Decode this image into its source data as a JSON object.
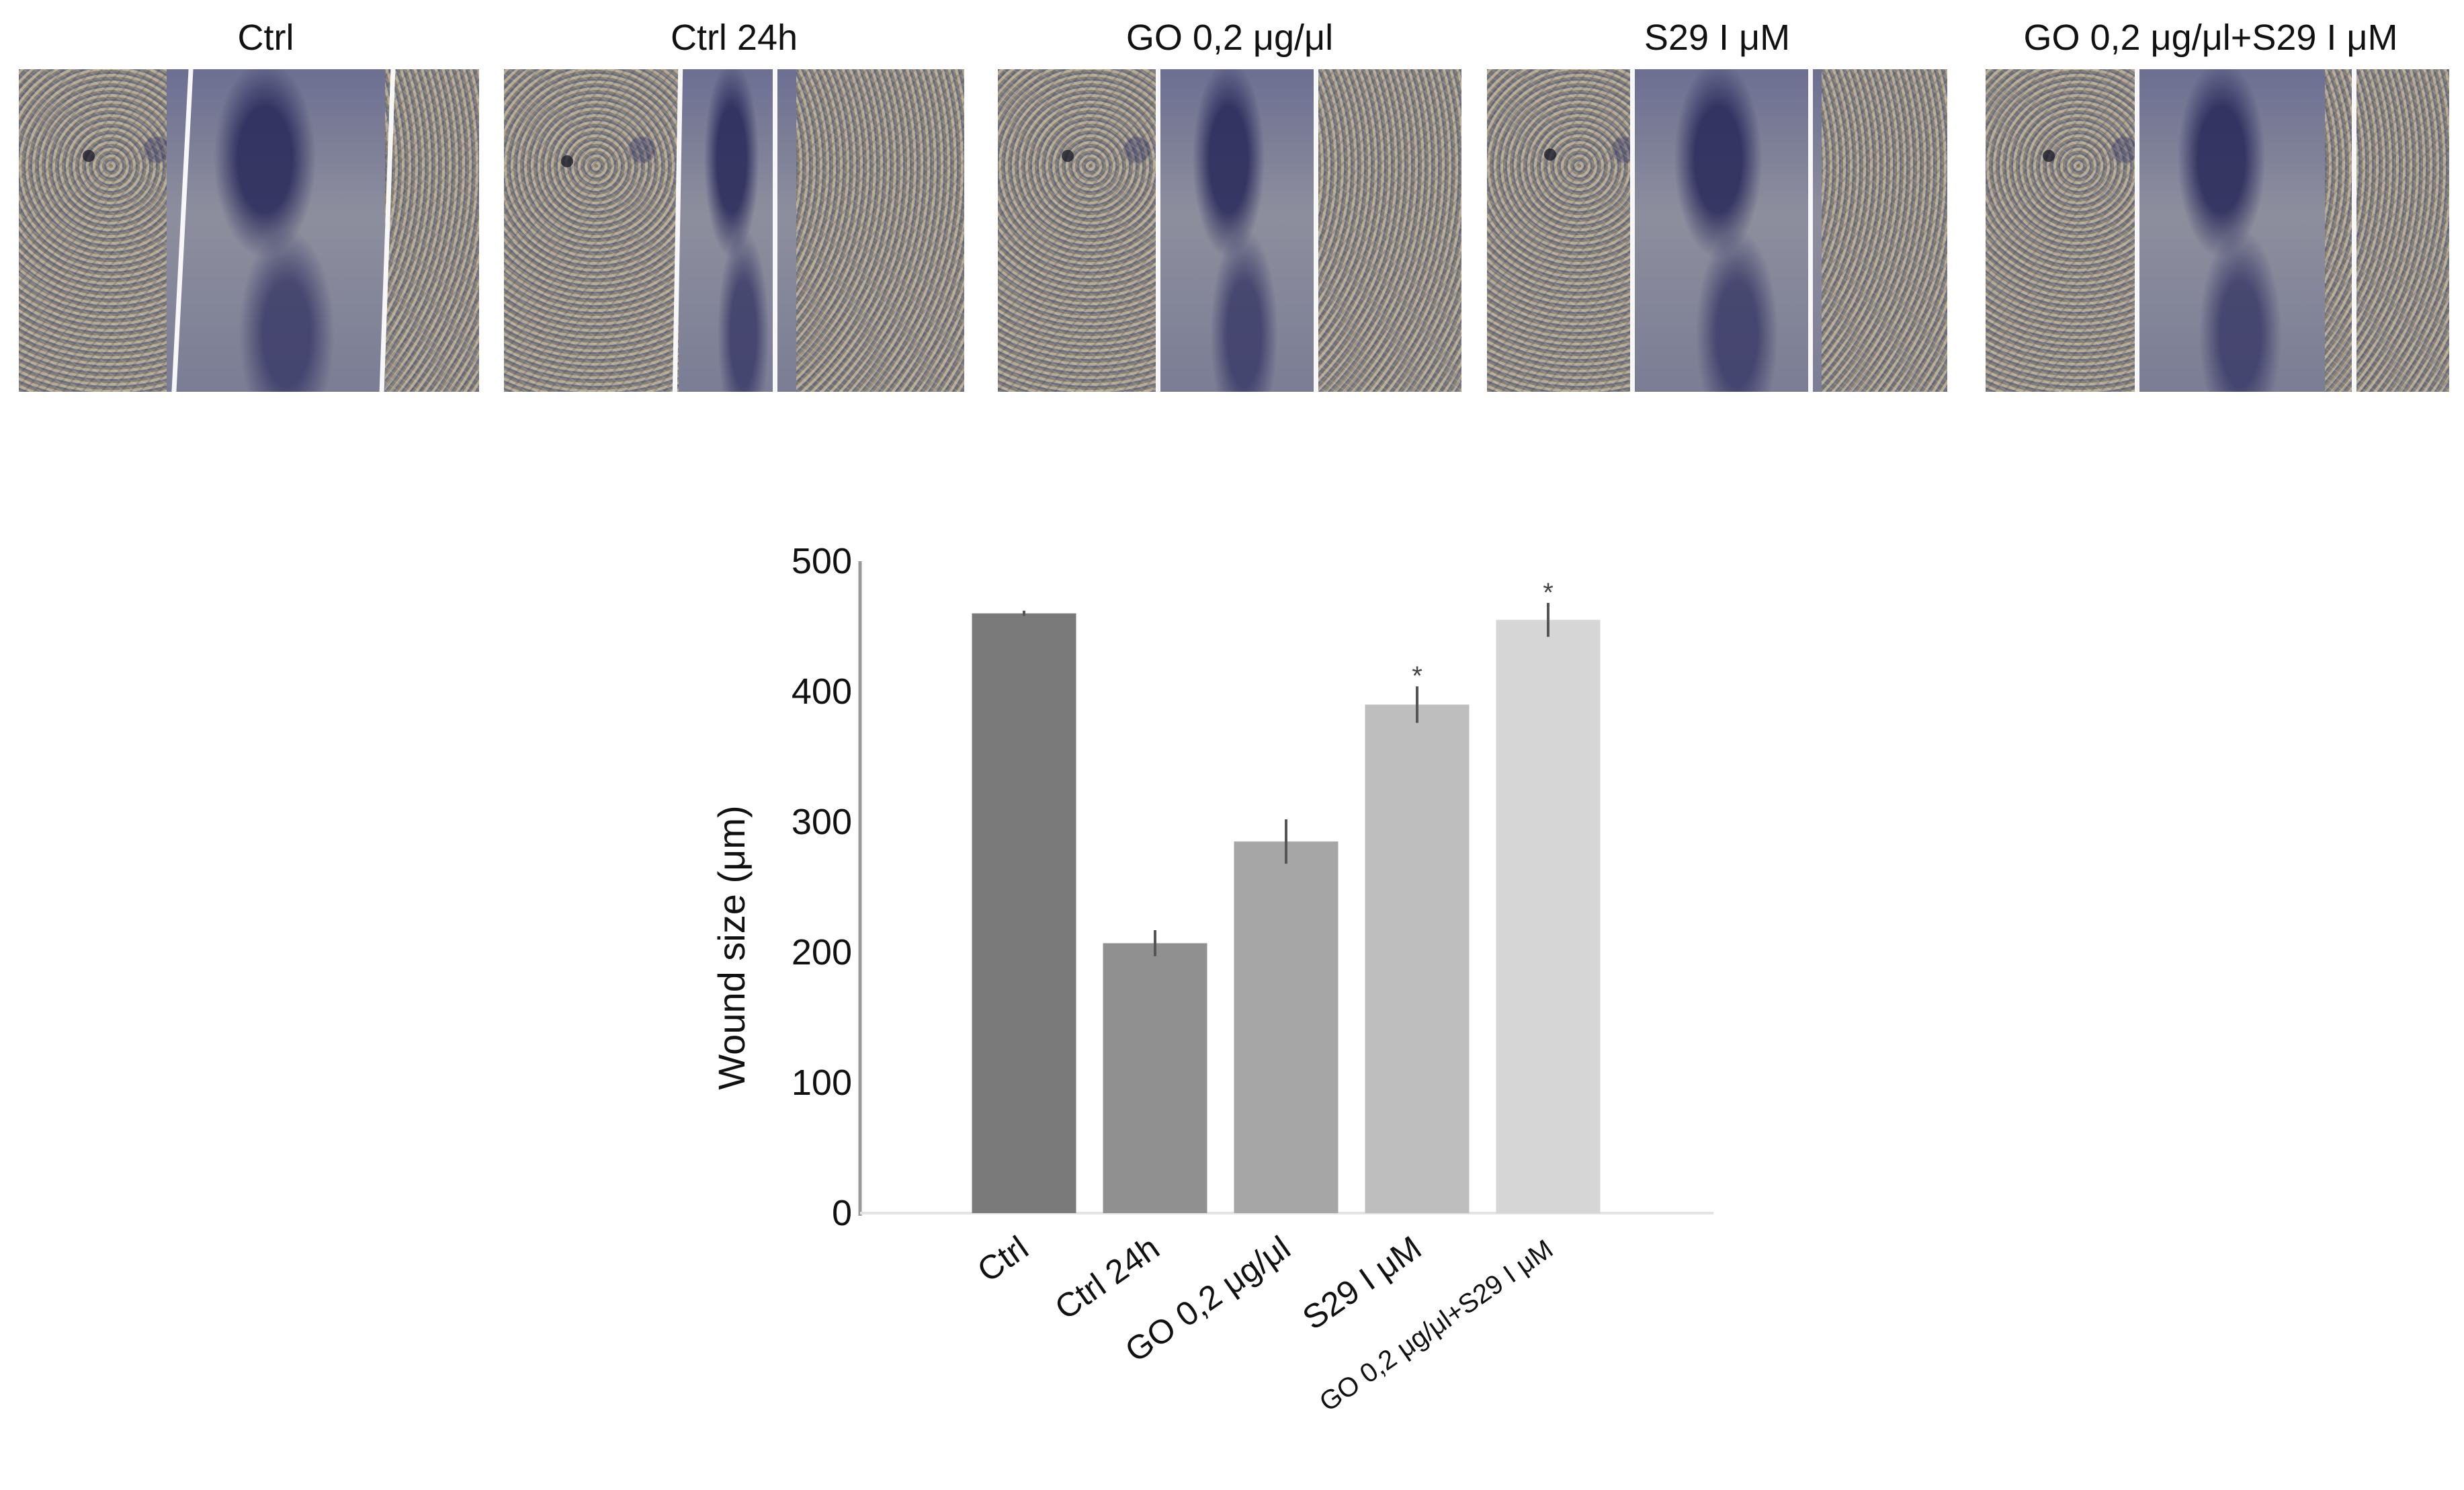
{
  "panels": [
    {
      "title": "Ctrl"
    },
    {
      "title": "Ctrl 24h"
    },
    {
      "title": "GO 0,2 μg/μl"
    },
    {
      "title": "S29 I μM"
    },
    {
      "title": "GO 0,2 μg/μl+S29 I μM"
    }
  ],
  "chart_data": {
    "type": "bar",
    "categories": [
      "Ctrl",
      "Ctrl 24h",
      "GO 0,2 μg/μl",
      "S29 I μM",
      "GO 0,2 μg/μl+S29 I μM"
    ],
    "values": [
      460,
      207,
      285,
      390,
      455
    ],
    "errors": [
      2,
      10,
      17,
      14,
      13
    ],
    "significance": [
      "",
      "",
      "",
      "*",
      "*"
    ],
    "ylabel": "Wound size (μm)",
    "xlabel": "",
    "ylim": [
      0,
      500
    ],
    "yticks": [
      0,
      100,
      200,
      300,
      400,
      500
    ],
    "colors": [
      "#7a7a7a",
      "#909090",
      "#a6a6a6",
      "#bebebe",
      "#d6d6d6"
    ],
    "grid": false
  }
}
